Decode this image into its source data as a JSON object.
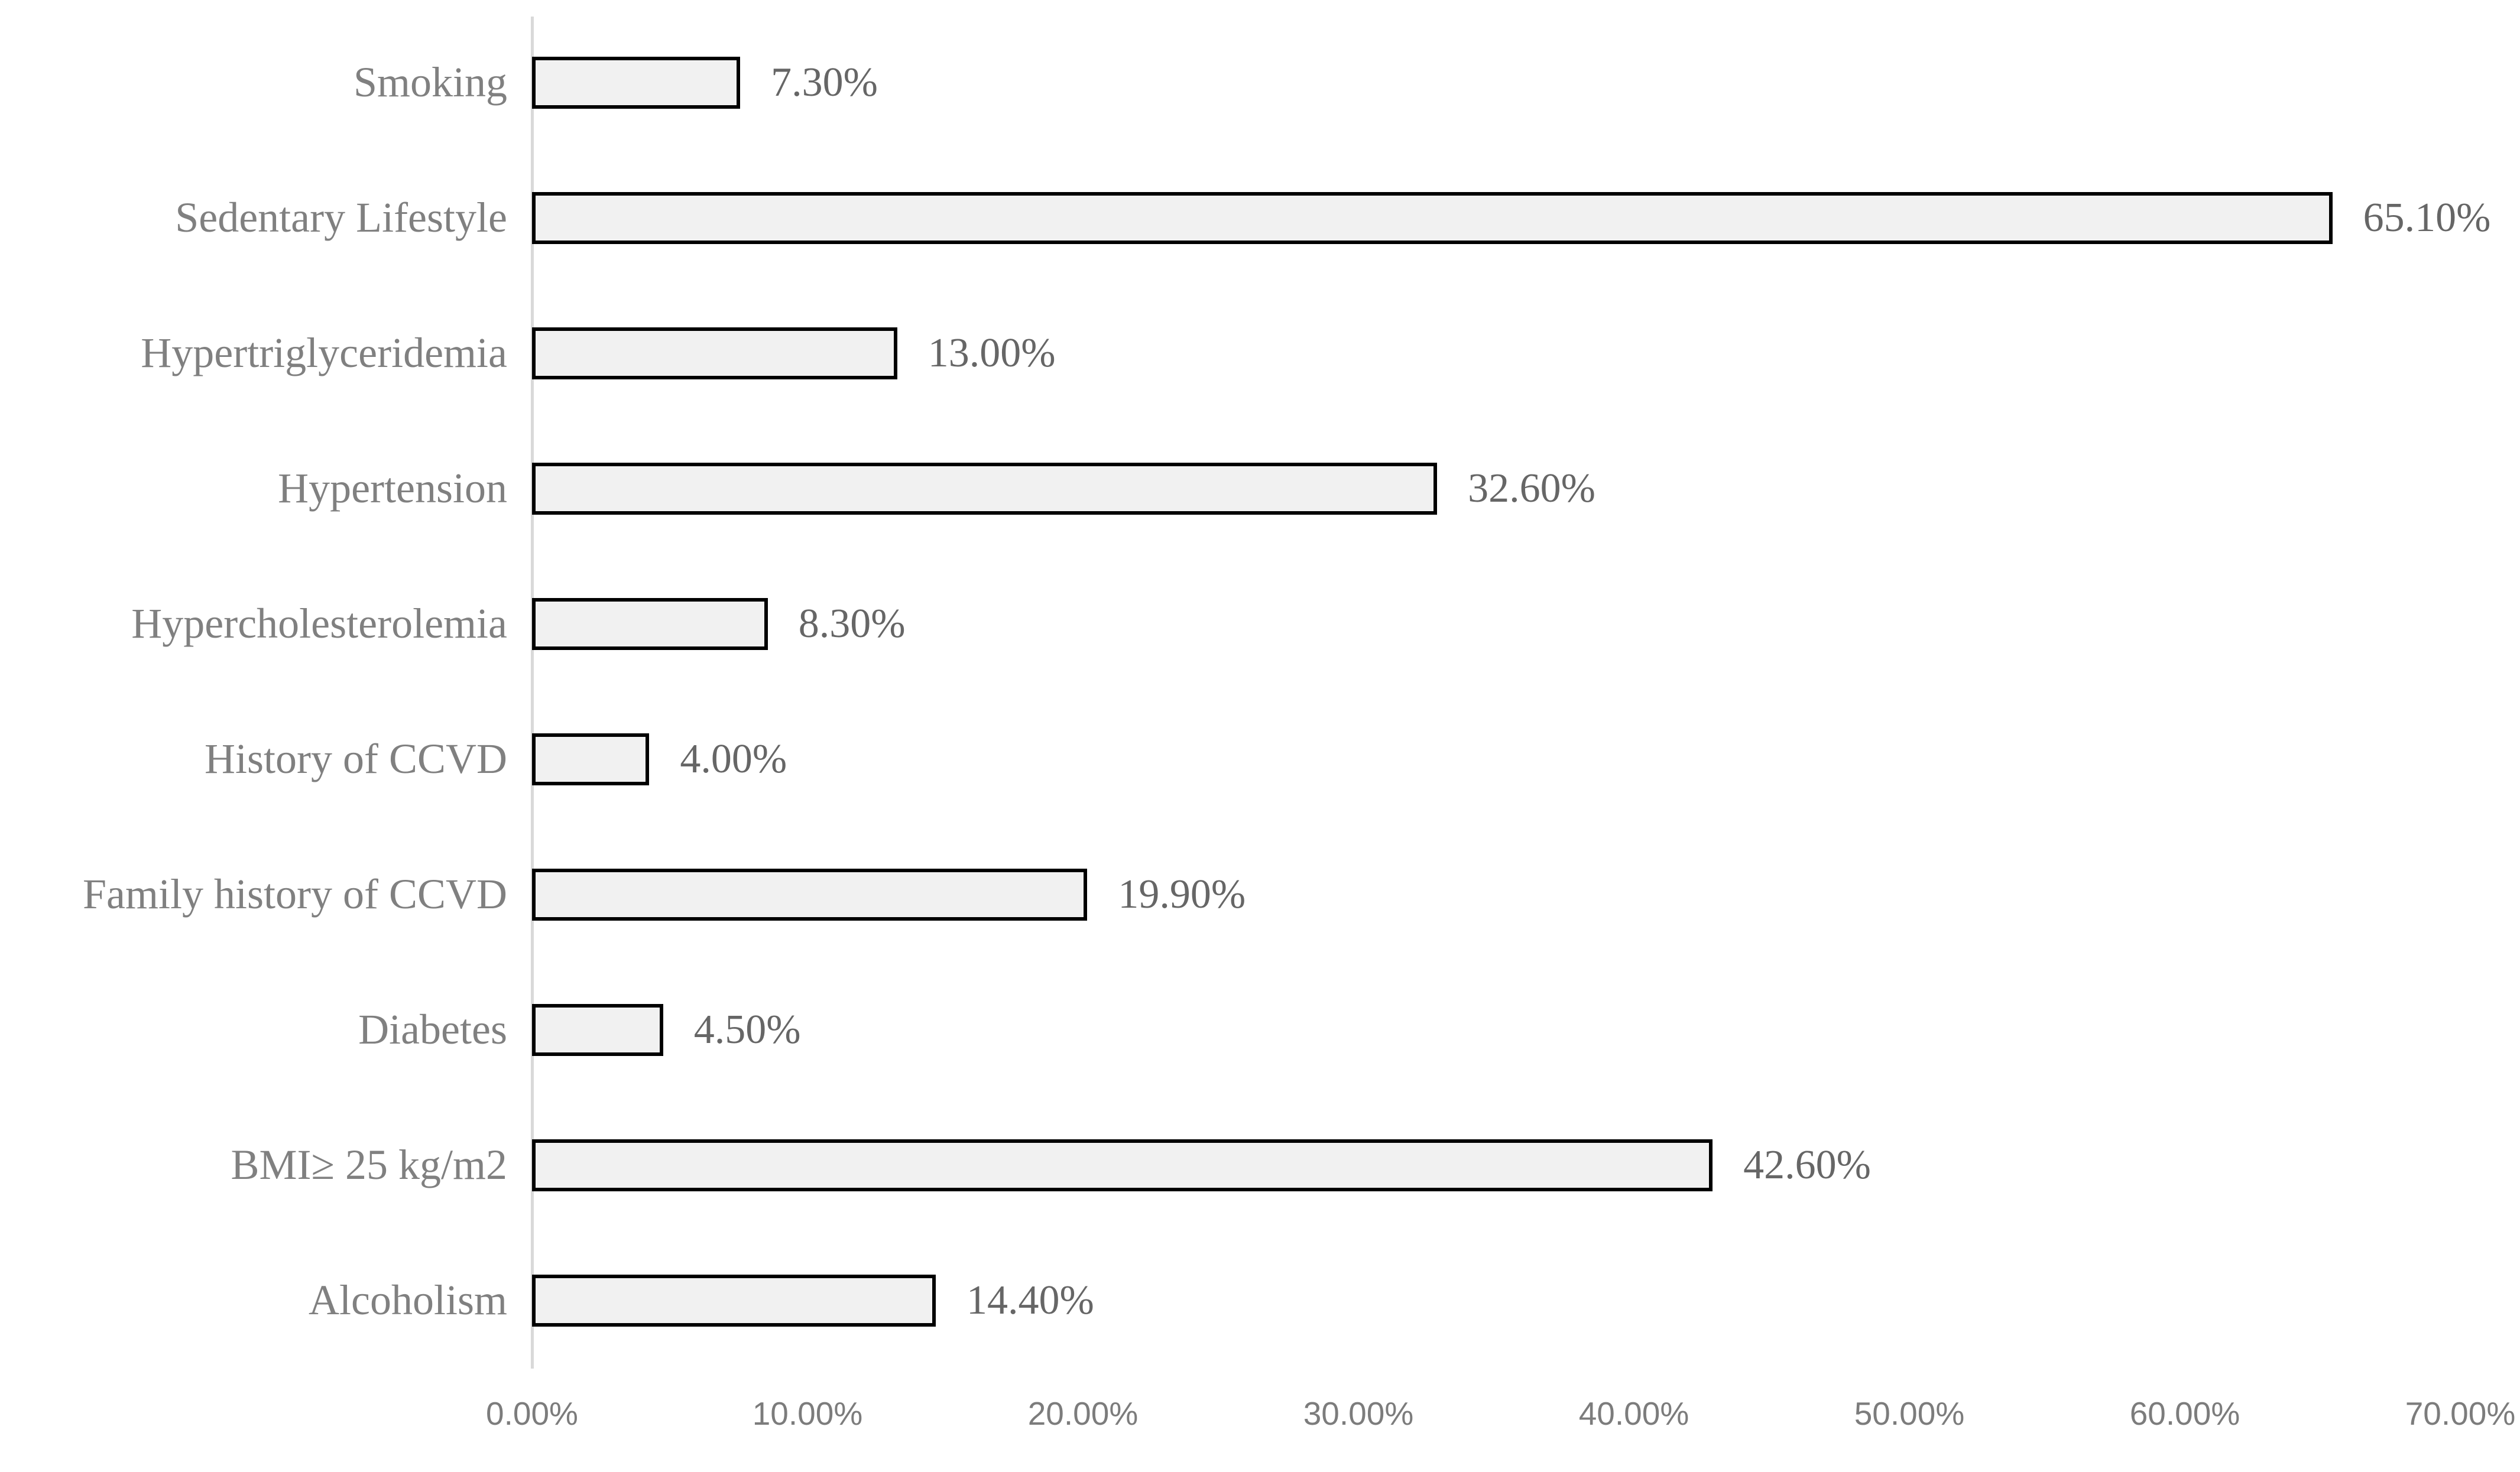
{
  "chart_data": {
    "type": "bar",
    "orientation": "horizontal",
    "title": "",
    "categories": [
      "Smoking",
      "Sedentary Lifestyle",
      "Hypertriglyceridemia",
      "Hypertension",
      "Hypercholesterolemia",
      "History of CCVD",
      "Family history of CCVD",
      "Diabetes",
      "BMI≥ 25 kg/m2",
      "Alcoholism"
    ],
    "values": [
      7.3,
      65.1,
      13.0,
      32.6,
      8.3,
      4.0,
      19.9,
      4.5,
      42.6,
      14.4
    ],
    "value_labels": [
      "7.30%",
      "65.10%",
      "13.00%",
      "32.60%",
      "8.30%",
      "4.00%",
      "19.90%",
      "4.50%",
      "42.60%",
      "14.40%"
    ],
    "x_ticks": [
      "0.00%",
      "10.00%",
      "20.00%",
      "30.00%",
      "40.00%",
      "50.00%",
      "60.00%",
      "70.00%"
    ],
    "xlim": [
      0,
      70
    ],
    "xlabel": "",
    "ylabel": "",
    "grid": false,
    "legend": false,
    "colors": {
      "bar_fill": "#F1F1F1",
      "bar_border": "#000000",
      "axis_line": "#D9D9D9",
      "category_label": "#808080",
      "value_label": "#666666",
      "tick_label": "#7C7C7C",
      "background": "#FFFFFF"
    }
  }
}
